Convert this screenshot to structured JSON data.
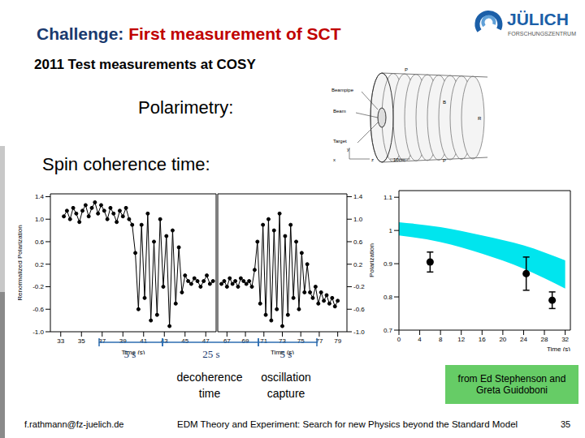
{
  "slide": {
    "title_prefix": "Challenge:",
    "title": "First measurement of SCT",
    "subtitle": "2011 Test measurements at COSY",
    "items": [
      "Polarimetry:",
      "Spin coherence time:"
    ],
    "logo": {
      "name": "JÜLICH",
      "sub": "FORSCHUNGSZENTRUM"
    },
    "credit": "from Ed Stephenson and Greta Guidoboni",
    "footer": {
      "email": "f.rathmann@fz-juelich.de",
      "text": "EDM Theory and Experiment: Search for new Physics beyond the Standard Model",
      "page": "35"
    }
  },
  "diagram": {
    "labels": [
      "Beampipe",
      "Beam",
      "Target",
      "P",
      "B",
      "R",
      "P",
      "y",
      "x",
      "z",
      "10cm"
    ]
  },
  "chart_data": [
    {
      "type": "line",
      "y_label": "Renormalized Polarization",
      "x_label": "Time (s)",
      "color": "#000000",
      "marker": "circle",
      "line_style": "solid",
      "ylim": [
        -1,
        1.45
      ],
      "yticks": [
        {
          "value": -1,
          "label": "-1.0"
        },
        -0.6,
        -0.2,
        0.2,
        0.6,
        {
          "value": 1,
          "label": "1.0"
        },
        1.4
      ],
      "panels": [
        {
          "xlim": [
            32,
            48
          ],
          "xticks": [
            33,
            35,
            37,
            39,
            41,
            43,
            45,
            47
          ],
          "x": [
            33.3,
            33.6,
            33.9,
            34.2,
            34.5,
            34.8,
            35.1,
            35.4,
            35.7,
            36.0,
            36.3,
            36.6,
            36.9,
            37.2,
            37.5,
            37.8,
            38.1,
            38.4,
            38.7,
            39.0,
            39.3,
            39.6,
            39.9,
            40.2,
            40.5,
            40.8,
            41.1,
            41.4,
            41.7,
            42.0,
            42.3,
            42.6,
            42.9,
            43.2,
            43.5,
            43.8,
            44.1,
            44.4,
            44.7,
            45.0,
            45.3,
            45.6,
            45.9,
            46.2,
            46.5,
            46.8,
            47.1,
            47.4,
            47.7
          ],
          "values": [
            1.05,
            1.15,
            1.0,
            1.2,
            1.1,
            0.95,
            1.15,
            1.25,
            1.05,
            1.2,
            1.3,
            1.1,
            1.25,
            1.15,
            1.0,
            1.2,
            1.1,
            0.95,
            1.15,
            1.05,
            1.2,
            1.0,
            0.9,
            0.4,
            -0.6,
            0.9,
            -0.4,
            1.1,
            -0.8,
            0.6,
            -0.7,
            1.0,
            -0.2,
            0.7,
            -0.9,
            0.8,
            -0.5,
            0.5,
            -0.3,
            0.0,
            -0.1,
            -0.15,
            -0.05,
            -0.1,
            -0.2,
            -0.1,
            0.0,
            -0.15,
            -0.1
          ]
        },
        {
          "xlim": [
            66,
            80
          ],
          "xticks": [
            67,
            69,
            71,
            73,
            75,
            77,
            79
          ],
          "x": [
            66.4,
            66.7,
            67.0,
            67.3,
            67.6,
            67.9,
            68.2,
            68.5,
            68.8,
            69.1,
            69.4,
            69.7,
            70.0,
            70.3,
            70.6,
            70.9,
            71.2,
            71.5,
            71.8,
            72.1,
            72.4,
            72.7,
            73.0,
            73.3,
            73.6,
            73.9,
            74.2,
            74.5,
            74.8,
            75.1,
            75.4,
            75.7,
            76.0,
            76.3,
            76.6,
            76.9,
            77.2,
            77.5,
            77.8,
            78.1,
            78.4,
            78.7,
            79.0
          ],
          "values": [
            -0.15,
            -0.1,
            -0.2,
            -0.05,
            -0.15,
            -0.1,
            -0.2,
            -0.05,
            -0.1,
            -0.15,
            -0.1,
            -0.2,
            0.1,
            0.6,
            -0.5,
            0.9,
            -0.7,
            1.0,
            -0.8,
            0.8,
            -0.6,
            1.1,
            -0.9,
            0.7,
            -0.7,
            0.9,
            -0.4,
            0.6,
            -0.6,
            0.4,
            -0.3,
            0.2,
            -0.3,
            -0.4,
            -0.2,
            -0.5,
            -0.3,
            -0.45,
            -0.35,
            -0.5,
            -0.4,
            -0.55,
            -0.45
          ]
        }
      ],
      "annotations": [
        "5 s",
        "25 s",
        "5 s"
      ],
      "captions": [
        "decoherence time",
        "oscillation capture"
      ]
    },
    {
      "type": "scatter",
      "y_label": "Polarization",
      "x_label": "Time (s)",
      "color": "#000000",
      "marker": "circle",
      "xlim": [
        0,
        33
      ],
      "xticks": [
        0,
        4,
        8,
        12,
        16,
        20,
        24,
        28,
        32
      ],
      "ylim": [
        0.7,
        1.12
      ],
      "yticks": [
        0.7,
        0.8,
        0.9,
        1,
        1.1
      ],
      "x": [
        6,
        24.5,
        29.5
      ],
      "values": [
        0.905,
        0.87,
        0.79
      ],
      "errors": [
        0.03,
        0.05,
        0.025
      ],
      "band": {
        "color": "#00e5ee",
        "x": [
          0,
          8,
          16,
          24,
          32
        ],
        "lower": [
          0.985,
          0.965,
          0.93,
          0.885,
          0.825
        ],
        "upper": [
          1.025,
          1.01,
          0.985,
          0.955,
          0.91
        ]
      }
    }
  ]
}
